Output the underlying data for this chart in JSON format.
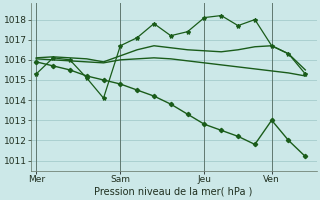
{
  "xlabel": "Pression niveau de la mer( hPa )",
  "bg_color": "#cce8e8",
  "plot_bg_color": "#cce8e8",
  "grid_color": "#aad0d0",
  "line_color": "#1a5c1a",
  "ylim": [
    1010.5,
    1018.8
  ],
  "yticks": [
    1011,
    1012,
    1013,
    1014,
    1015,
    1016,
    1017,
    1018
  ],
  "day_labels": [
    "Mer",
    "Sam",
    "Jeu",
    "Ven"
  ],
  "day_positions": [
    0,
    30,
    60,
    84
  ],
  "vline_positions": [
    0,
    30,
    60,
    84
  ],
  "xlim": [
    -2,
    100
  ],
  "s1_x": [
    0,
    6,
    12,
    18,
    24,
    30,
    36,
    42,
    48,
    54,
    60,
    66,
    72,
    78,
    84,
    90,
    96
  ],
  "s1_y": [
    1015.3,
    1016.1,
    1016.0,
    1015.1,
    1014.1,
    1016.7,
    1017.1,
    1017.8,
    1017.2,
    1017.4,
    1018.1,
    1018.2,
    1017.7,
    1018.0,
    1016.7,
    1016.3,
    1015.3
  ],
  "s2_x": [
    0,
    6,
    12,
    18,
    24,
    30,
    36,
    42,
    48,
    54,
    60,
    66,
    72,
    78,
    84,
    90,
    96
  ],
  "s2_y": [
    1016.1,
    1016.15,
    1016.1,
    1016.05,
    1015.9,
    1016.2,
    1016.5,
    1016.7,
    1016.6,
    1016.5,
    1016.45,
    1016.4,
    1016.5,
    1016.65,
    1016.7,
    1016.3,
    1015.5
  ],
  "s3_x": [
    0,
    6,
    12,
    18,
    24,
    30,
    36,
    42,
    48,
    54,
    60,
    66,
    72,
    78,
    84,
    90,
    96
  ],
  "s3_y": [
    1016.05,
    1016.0,
    1015.95,
    1015.9,
    1015.85,
    1016.0,
    1016.05,
    1016.1,
    1016.05,
    1015.95,
    1015.85,
    1015.75,
    1015.65,
    1015.55,
    1015.45,
    1015.35,
    1015.2
  ],
  "s4_x": [
    0,
    6,
    12,
    18,
    24,
    30,
    36,
    42,
    48,
    54,
    60,
    66,
    72,
    78,
    84,
    90,
    96
  ],
  "s4_y": [
    1015.9,
    1015.7,
    1015.5,
    1015.2,
    1015.0,
    1014.8,
    1014.5,
    1014.2,
    1013.8,
    1013.3,
    1012.8,
    1012.5,
    1012.2,
    1011.8,
    1013.0,
    1012.0,
    1011.2
  ]
}
